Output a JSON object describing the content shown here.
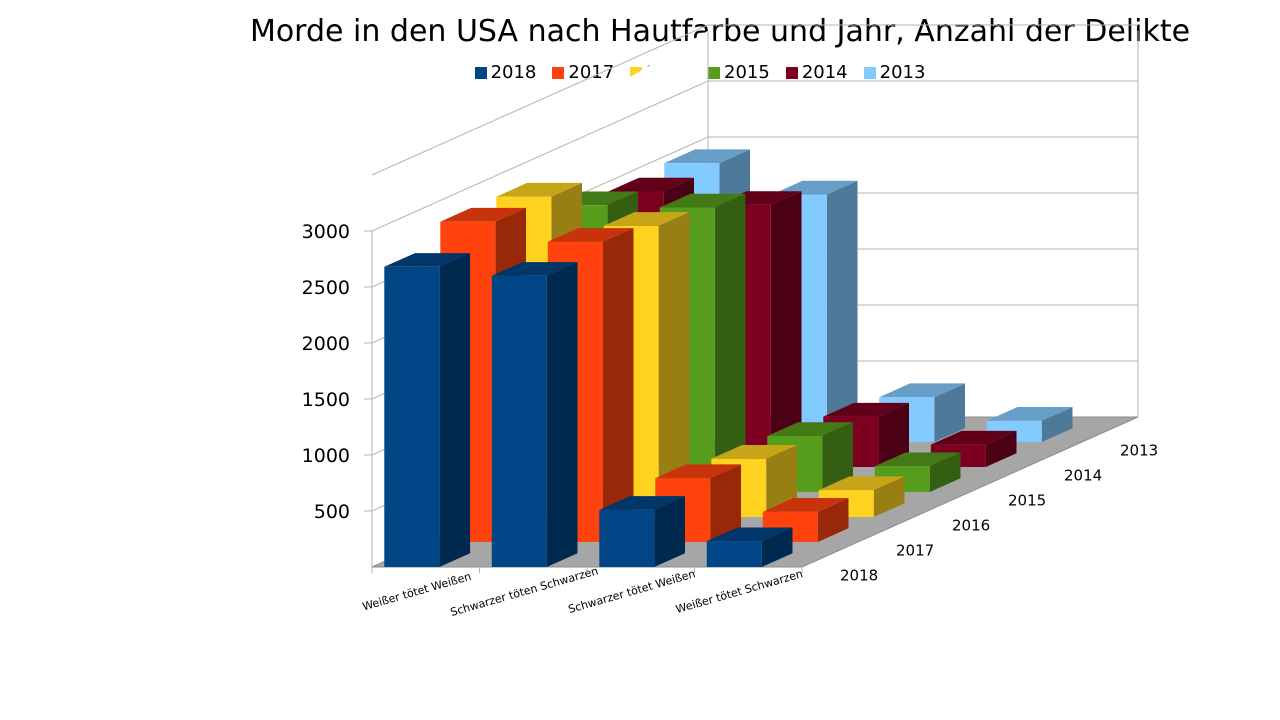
{
  "chart_data": {
    "type": "bar",
    "title": "Morde in den USA nach Hautfarbe und Jahr, Anzahl der Delikte",
    "categories": [
      "Weißer tötet Weißen",
      "Schwarzer töten Schwarzen",
      "Schwarzer tötet Weißen",
      "Weißer tötet Schwarzen"
    ],
    "series": [
      {
        "name": "2018",
        "color": "#004586",
        "values": [
          2680,
          2600,
          510,
          230
        ]
      },
      {
        "name": "2017",
        "color": "#ff420e",
        "values": [
          2860,
          2680,
          570,
          270
        ]
      },
      {
        "name": "2016",
        "color": "#ffd320",
        "values": [
          2860,
          2600,
          520,
          240
        ]
      },
      {
        "name": "2015",
        "color": "#579d1c",
        "values": [
          2560,
          2540,
          500,
          230
        ]
      },
      {
        "name": "2014",
        "color": "#7e0021",
        "values": [
          2460,
          2340,
          450,
          200
        ]
      },
      {
        "name": "2013",
        "color": "#83caff",
        "values": [
          2490,
          2210,
          400,
          190
        ]
      }
    ],
    "yticks": [
      "500",
      "1000",
      "1500",
      "2000",
      "2500",
      "3000"
    ],
    "depth_labels": [
      "2018",
      "2017",
      "2016",
      "2015",
      "2014",
      "2013"
    ],
    "ylim": [
      0,
      3000
    ],
    "grid": true,
    "legend": "top"
  }
}
